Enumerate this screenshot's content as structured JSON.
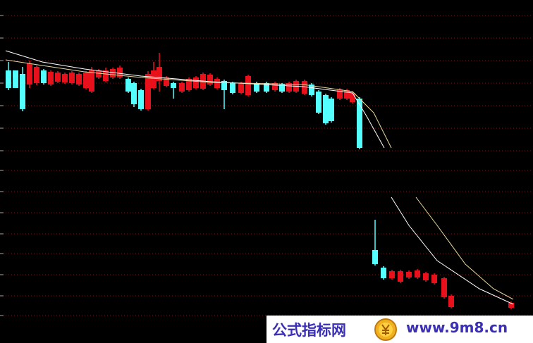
{
  "chart_data": {
    "type": "candlestick",
    "xlim": [
      0,
      756
    ],
    "ylim": [
      0,
      487
    ],
    "yticks": [
      465,
      433,
      401,
      369,
      337,
      305,
      273,
      245,
      215,
      185,
      155,
      127,
      97,
      67,
      39
    ],
    "grid": true,
    "up_color": "#e8101a",
    "down_color": "#54ffff",
    "x": [
      12,
      22,
      32,
      42,
      52,
      62,
      72,
      82,
      92,
      102,
      112,
      122,
      130,
      140,
      150,
      160,
      170,
      182,
      190,
      200,
      210,
      218,
      226,
      236,
      246,
      258,
      268,
      278,
      288,
      298,
      308,
      318,
      330,
      342,
      352,
      364,
      378,
      390,
      400,
      410,
      420,
      432,
      442,
      452,
      462,
      470,
      482,
      492,
      500,
      510,
      532,
      544,
      556,
      568,
      580,
      592,
      604,
      616,
      630,
      640,
      725
    ],
    "open": [
      387,
      387,
      382,
      367,
      369,
      387,
      367,
      371,
      370,
      369,
      367,
      362,
      357,
      377,
      372,
      377,
      377,
      375,
      369,
      359,
      332,
      362,
      372,
      365,
      369,
      357,
      359,
      362,
      361,
      367,
      362,
      372,
      369,
      355,
      352,
      369,
      369,
      359,
      367,
      357,
      357,
      354,
      367,
      357,
      352,
      347,
      347,
      347,
      342,
      347,
      132,
      107,
      92,
      87,
      93,
      93,
      89,
      85,
      65,
      51,
      50
    ],
    "high": [
      399,
      387,
      392,
      401,
      394,
      389,
      387,
      386,
      384,
      386,
      384,
      386,
      392,
      389,
      391,
      391,
      394,
      377,
      371,
      361,
      386,
      399,
      412,
      379,
      371,
      371,
      377,
      379,
      384,
      383,
      377,
      374,
      371,
      371,
      381,
      371,
      371,
      371,
      369,
      371,
      374,
      374,
      369,
      359,
      354,
      349,
      362,
      361,
      357,
      349,
      175,
      109,
      104,
      104,
      103,
      105,
      101,
      99,
      94,
      69,
      59
    ],
    "low": [
      359,
      362,
      329,
      362,
      366,
      367,
      365,
      369,
      368,
      367,
      365,
      360,
      355,
      375,
      370,
      375,
      375,
      355,
      335,
      330,
      330,
      360,
      357,
      363,
      347,
      355,
      357,
      360,
      359,
      365,
      360,
      332,
      353,
      353,
      350,
      355,
      355,
      357,
      355,
      355,
      355,
      352,
      350,
      325,
      310,
      313,
      345,
      345,
      340,
      275,
      110,
      90,
      90,
      85,
      91,
      91,
      87,
      83,
      63,
      49,
      48
    ],
    "close": [
      362,
      362,
      332,
      397,
      392,
      369,
      385,
      384,
      382,
      384,
      382,
      384,
      387,
      387,
      387,
      389,
      391,
      357,
      339,
      332,
      382,
      387,
      392,
      377,
      362,
      369,
      375,
      377,
      382,
      381,
      375,
      359,
      355,
      369,
      379,
      357,
      357,
      369,
      357,
      369,
      372,
      372,
      352,
      327,
      312,
      315,
      360,
      359,
      355,
      277,
      112,
      92,
      102,
      102,
      101,
      103,
      99,
      97,
      92,
      67,
      57
    ],
    "moving_averages": [
      {
        "color": "#ffffff",
        "x": [
          8,
          60,
          120,
          200,
          300,
          430,
          500,
          520,
          545,
          550,
          555,
          580,
          620,
          680,
          728
        ],
        "values": [
          415,
          399,
          389,
          379,
          371,
          364,
          355,
          322,
          277,
          null,
          207,
          167,
          117,
          77,
          55
        ]
      },
      {
        "color": "#e8d8a0",
        "x": [
          8,
          60,
          120,
          200,
          300,
          430,
          500,
          530,
          555,
          560,
          590,
          620,
          660,
          700,
          728
        ],
        "values": [
          402,
          394,
          385,
          377,
          370,
          367,
          357,
          327,
          277,
          null,
          207,
          167,
          112,
          77,
          62
        ]
      }
    ]
  },
  "watermark": {
    "site_name": "公式指标网",
    "url": "www.9m8.cn"
  }
}
